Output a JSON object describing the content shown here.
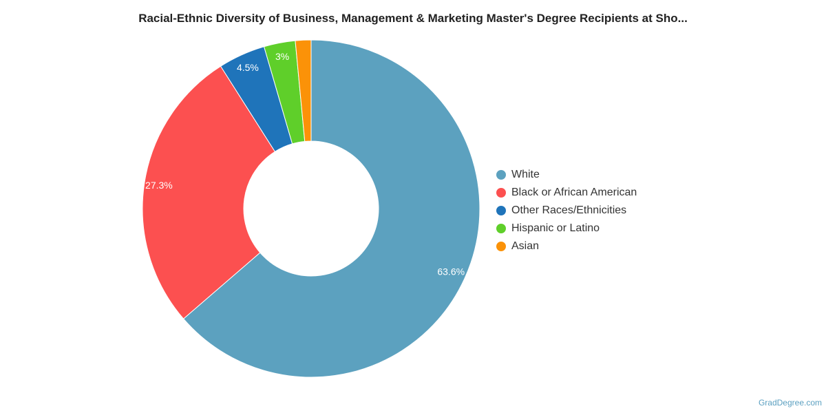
{
  "chart_data": {
    "type": "pie",
    "title": "Racial-Ethnic Diversity of Business, Management & Marketing Master's Degree Recipients at Sho...",
    "donut": true,
    "start_angle_deg": 0,
    "legend_position": "right",
    "slices": [
      {
        "name": "White",
        "value": 63.6,
        "label": "63.6%",
        "color": "#5ca1bf"
      },
      {
        "name": "Black or African American",
        "value": 27.3,
        "label": "27.3%",
        "color": "#fc5050"
      },
      {
        "name": "Other Races/Ethnicities",
        "value": 4.5,
        "label": "4.5%",
        "color": "#1f74ba"
      },
      {
        "name": "Hispanic or Latino",
        "value": 3.0,
        "label": "3%",
        "color": "#5fcf2a"
      },
      {
        "name": "Asian",
        "value": 1.5,
        "label": "",
        "color": "#fb9208"
      }
    ]
  },
  "footer": {
    "credit": "GradDegree.com"
  }
}
